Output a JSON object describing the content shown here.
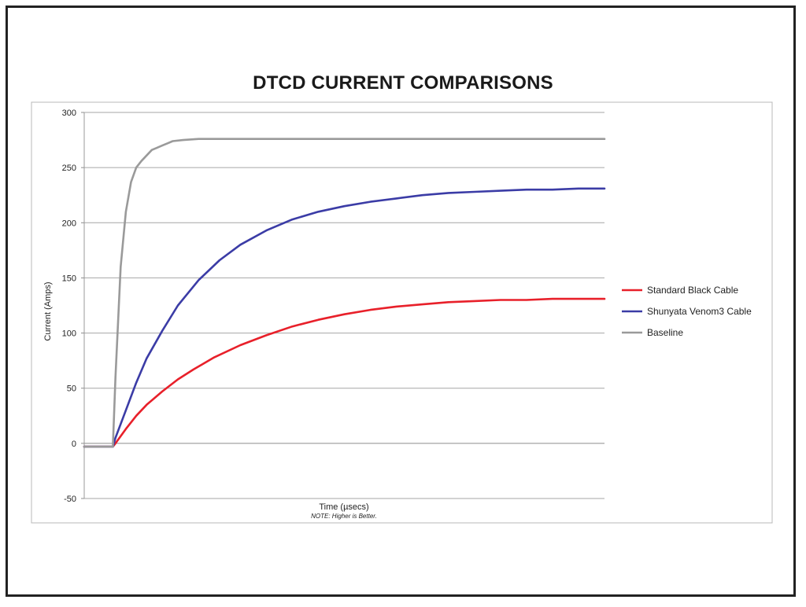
{
  "chart_data": {
    "type": "line",
    "title": "DTCD CURRENT COMPARISONS",
    "xlabel": "Time (µsecs)",
    "note": "NOTE: Higher is Better.",
    "ylabel": "Current (Amps)",
    "ylim": [
      -50,
      300
    ],
    "yticks": [
      -50,
      0,
      50,
      100,
      150,
      200,
      250,
      300
    ],
    "xlim": [
      0,
      100
    ],
    "grid": true,
    "legend_position": "right",
    "series": [
      {
        "name": "Standard Black Cable",
        "color": "#e8202a",
        "points": [
          [
            0,
            -3
          ],
          [
            5.5,
            -3
          ],
          [
            6,
            0
          ],
          [
            8,
            13
          ],
          [
            10,
            25
          ],
          [
            12,
            35
          ],
          [
            15,
            47
          ],
          [
            18,
            58
          ],
          [
            21,
            67
          ],
          [
            25,
            78
          ],
          [
            30,
            89
          ],
          [
            35,
            98
          ],
          [
            40,
            106
          ],
          [
            45,
            112
          ],
          [
            50,
            117
          ],
          [
            55,
            121
          ],
          [
            60,
            124
          ],
          [
            65,
            126
          ],
          [
            70,
            128
          ],
          [
            75,
            129
          ],
          [
            80,
            130
          ],
          [
            85,
            130
          ],
          [
            90,
            131
          ],
          [
            95,
            131
          ],
          [
            100,
            131
          ]
        ]
      },
      {
        "name": "Shunyata Venom3 Cable",
        "color": "#3b3ca6",
        "points": [
          [
            0,
            -3
          ],
          [
            5.5,
            -3
          ],
          [
            6,
            5
          ],
          [
            8,
            30
          ],
          [
            10,
            55
          ],
          [
            12,
            77
          ],
          [
            15,
            102
          ],
          [
            18,
            125
          ],
          [
            22,
            148
          ],
          [
            26,
            166
          ],
          [
            30,
            180
          ],
          [
            35,
            193
          ],
          [
            40,
            203
          ],
          [
            45,
            210
          ],
          [
            50,
            215
          ],
          [
            55,
            219
          ],
          [
            60,
            222
          ],
          [
            65,
            225
          ],
          [
            70,
            227
          ],
          [
            75,
            228
          ],
          [
            80,
            229
          ],
          [
            85,
            230
          ],
          [
            90,
            230
          ],
          [
            95,
            231
          ],
          [
            100,
            231
          ]
        ]
      },
      {
        "name": "Baseline",
        "color": "#9a9a9a",
        "points": [
          [
            0,
            -3
          ],
          [
            5.5,
            -3
          ],
          [
            6,
            60
          ],
          [
            7,
            160
          ],
          [
            8,
            210
          ],
          [
            9,
            237
          ],
          [
            10,
            250
          ],
          [
            11,
            256
          ],
          [
            12,
            261
          ],
          [
            13,
            266
          ],
          [
            14,
            268
          ],
          [
            15,
            270
          ],
          [
            16,
            272
          ],
          [
            17,
            274
          ],
          [
            19,
            275
          ],
          [
            22,
            276
          ],
          [
            30,
            276
          ],
          [
            100,
            276
          ]
        ]
      }
    ]
  }
}
